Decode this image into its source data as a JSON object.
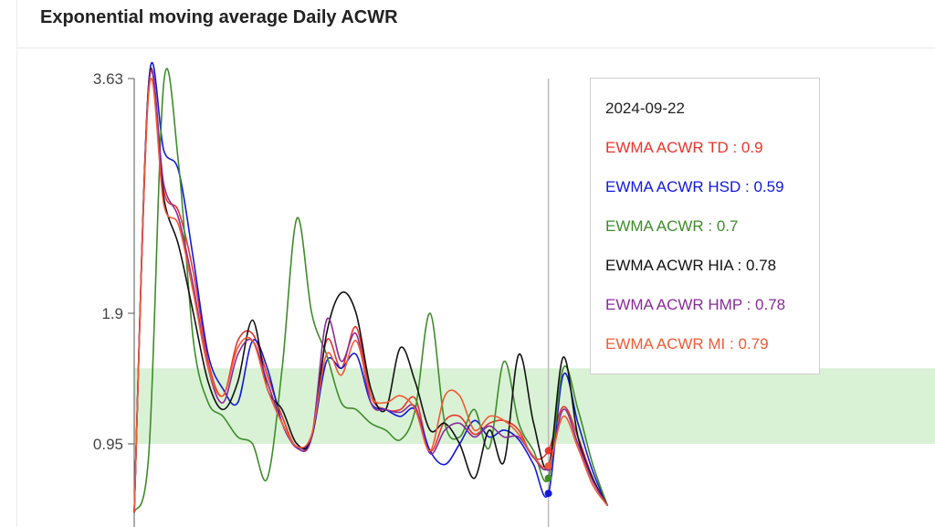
{
  "title": "Exponential moving average Daily ACWR",
  "chart_data": {
    "type": "line",
    "title": "Exponential moving average Daily ACWR",
    "ylim": [
      0.45,
      3.63
    ],
    "y_ticks": [
      3.63,
      1.9,
      0.95
    ],
    "y_tick_labels": [
      "3.63",
      "1.9",
      "0.95"
    ],
    "x_range": [
      "2024-08-25",
      "2024-10-03"
    ],
    "band": {
      "from": 0.95,
      "to": 1.5,
      "color": "#d9f2d5"
    },
    "hover_date": "2024-09-22",
    "series": [
      {
        "name": "EWMA ACWR TD",
        "color": "#e8352c",
        "points": [
          [
            "2024-08-25",
            0.45
          ],
          [
            "2024-08-26",
            3.6
          ],
          [
            "2024-08-27",
            2.8
          ],
          [
            "2024-08-28",
            2.65
          ],
          [
            "2024-08-29",
            2.2
          ],
          [
            "2024-08-30",
            1.55
          ],
          [
            "2024-08-31",
            1.3
          ],
          [
            "2024-09-01",
            1.7
          ],
          [
            "2024-09-02",
            1.75
          ],
          [
            "2024-09-03",
            1.45
          ],
          [
            "2024-09-04",
            1.15
          ],
          [
            "2024-09-05",
            0.92
          ],
          [
            "2024-09-06",
            1.0
          ],
          [
            "2024-09-07",
            1.7
          ],
          [
            "2024-09-08",
            1.5
          ],
          [
            "2024-09-09",
            1.8
          ],
          [
            "2024-09-10",
            1.3
          ],
          [
            "2024-09-11",
            1.2
          ],
          [
            "2024-09-12",
            1.2
          ],
          [
            "2024-09-13",
            1.28
          ],
          [
            "2024-09-14",
            0.9
          ],
          [
            "2024-09-15",
            1.12
          ],
          [
            "2024-09-16",
            1.15
          ],
          [
            "2024-09-17",
            1.02
          ],
          [
            "2024-09-18",
            1.1
          ],
          [
            "2024-09-19",
            1.12
          ],
          [
            "2024-09-20",
            1.05
          ],
          [
            "2024-09-21",
            0.85
          ],
          [
            "2024-09-22",
            0.9
          ],
          [
            "2024-09-23",
            1.22
          ],
          [
            "2024-09-24",
            1.0
          ],
          [
            "2024-09-25",
            0.7
          ],
          [
            "2024-09-26",
            0.5
          ]
        ]
      },
      {
        "name": "EWMA ACWR HSD",
        "color": "#1219d8",
        "points": [
          [
            "2024-08-25",
            0.45
          ],
          [
            "2024-08-26",
            3.62
          ],
          [
            "2024-08-27",
            3.1
          ],
          [
            "2024-08-28",
            2.95
          ],
          [
            "2024-08-29",
            2.3
          ],
          [
            "2024-08-30",
            1.6
          ],
          [
            "2024-08-31",
            1.35
          ],
          [
            "2024-09-01",
            1.25
          ],
          [
            "2024-09-02",
            1.7
          ],
          [
            "2024-09-03",
            1.5
          ],
          [
            "2024-09-04",
            1.1
          ],
          [
            "2024-09-05",
            0.93
          ],
          [
            "2024-09-06",
            1.0
          ],
          [
            "2024-09-07",
            1.55
          ],
          [
            "2024-09-08",
            1.5
          ],
          [
            "2024-09-09",
            1.6
          ],
          [
            "2024-09-10",
            1.25
          ],
          [
            "2024-09-11",
            1.2
          ],
          [
            "2024-09-12",
            1.15
          ],
          [
            "2024-09-13",
            1.2
          ],
          [
            "2024-09-14",
            0.9
          ],
          [
            "2024-09-15",
            0.8
          ],
          [
            "2024-09-16",
            0.95
          ],
          [
            "2024-09-17",
            1.12
          ],
          [
            "2024-09-18",
            1.0
          ],
          [
            "2024-09-19",
            1.05
          ],
          [
            "2024-09-20",
            0.98
          ],
          [
            "2024-09-21",
            0.8
          ],
          [
            "2024-09-22",
            0.59
          ],
          [
            "2024-09-23",
            1.45
          ],
          [
            "2024-09-24",
            1.1
          ],
          [
            "2024-09-25",
            0.75
          ],
          [
            "2024-09-26",
            0.5
          ]
        ]
      },
      {
        "name": "EWMA ACWR",
        "color": "#3e8c2a",
        "points": [
          [
            "2024-08-25",
            0.45
          ],
          [
            "2024-08-26",
            0.9
          ],
          [
            "2024-08-27",
            3.6
          ],
          [
            "2024-08-28",
            3.0
          ],
          [
            "2024-08-29",
            1.7
          ],
          [
            "2024-08-30",
            1.25
          ],
          [
            "2024-08-31",
            1.15
          ],
          [
            "2024-09-01",
            1.0
          ],
          [
            "2024-09-02",
            0.95
          ],
          [
            "2024-09-03",
            0.7
          ],
          [
            "2024-09-04",
            1.5
          ],
          [
            "2024-09-05",
            2.6
          ],
          [
            "2024-09-06",
            1.9
          ],
          [
            "2024-09-07",
            1.6
          ],
          [
            "2024-09-08",
            1.25
          ],
          [
            "2024-09-09",
            1.2
          ],
          [
            "2024-09-10",
            1.1
          ],
          [
            "2024-09-11",
            1.05
          ],
          [
            "2024-09-12",
            0.98
          ],
          [
            "2024-09-13",
            1.2
          ],
          [
            "2024-09-14",
            1.9
          ],
          [
            "2024-09-15",
            1.1
          ],
          [
            "2024-09-16",
            1.0
          ],
          [
            "2024-09-17",
            1.2
          ],
          [
            "2024-09-18",
            0.92
          ],
          [
            "2024-09-19",
            1.55
          ],
          [
            "2024-09-20",
            1.1
          ],
          [
            "2024-09-21",
            0.9
          ],
          [
            "2024-09-22",
            0.7
          ],
          [
            "2024-09-23",
            1.5
          ],
          [
            "2024-09-24",
            1.2
          ],
          [
            "2024-09-25",
            0.8
          ],
          [
            "2024-09-26",
            0.5
          ]
        ]
      },
      {
        "name": "EWMA ACWR HIA",
        "color": "#111111",
        "points": [
          [
            "2024-08-25",
            0.45
          ],
          [
            "2024-08-26",
            3.62
          ],
          [
            "2024-08-27",
            2.75
          ],
          [
            "2024-08-28",
            2.4
          ],
          [
            "2024-08-29",
            1.9
          ],
          [
            "2024-08-30",
            1.4
          ],
          [
            "2024-08-31",
            1.2
          ],
          [
            "2024-09-01",
            1.4
          ],
          [
            "2024-09-02",
            1.85
          ],
          [
            "2024-09-03",
            1.35
          ],
          [
            "2024-09-04",
            1.2
          ],
          [
            "2024-09-05",
            0.95
          ],
          [
            "2024-09-06",
            1.0
          ],
          [
            "2024-09-07",
            1.75
          ],
          [
            "2024-09-08",
            2.05
          ],
          [
            "2024-09-09",
            1.9
          ],
          [
            "2024-09-10",
            1.35
          ],
          [
            "2024-09-11",
            1.2
          ],
          [
            "2024-09-12",
            1.65
          ],
          [
            "2024-09-13",
            1.4
          ],
          [
            "2024-09-14",
            1.05
          ],
          [
            "2024-09-15",
            1.1
          ],
          [
            "2024-09-16",
            0.95
          ],
          [
            "2024-09-17",
            0.7
          ],
          [
            "2024-09-18",
            1.05
          ],
          [
            "2024-09-19",
            0.82
          ],
          [
            "2024-09-20",
            1.6
          ],
          [
            "2024-09-21",
            1.1
          ],
          [
            "2024-09-22",
            0.78
          ],
          [
            "2024-09-23",
            1.58
          ],
          [
            "2024-09-24",
            1.0
          ],
          [
            "2024-09-25",
            0.7
          ],
          [
            "2024-09-26",
            0.5
          ]
        ]
      },
      {
        "name": "EWMA ACWR HMP",
        "color": "#8a2b9a",
        "points": [
          [
            "2024-08-25",
            0.45
          ],
          [
            "2024-08-26",
            3.6
          ],
          [
            "2024-08-27",
            2.85
          ],
          [
            "2024-08-28",
            2.6
          ],
          [
            "2024-08-29",
            2.1
          ],
          [
            "2024-08-30",
            1.5
          ],
          [
            "2024-08-31",
            1.25
          ],
          [
            "2024-09-01",
            1.6
          ],
          [
            "2024-09-02",
            1.7
          ],
          [
            "2024-09-03",
            1.4
          ],
          [
            "2024-09-04",
            1.1
          ],
          [
            "2024-09-05",
            0.92
          ],
          [
            "2024-09-06",
            1.0
          ],
          [
            "2024-09-07",
            1.85
          ],
          [
            "2024-09-08",
            1.55
          ],
          [
            "2024-09-09",
            1.75
          ],
          [
            "2024-09-10",
            1.25
          ],
          [
            "2024-09-11",
            1.2
          ],
          [
            "2024-09-12",
            1.18
          ],
          [
            "2024-09-13",
            1.22
          ],
          [
            "2024-09-14",
            0.88
          ],
          [
            "2024-09-15",
            1.05
          ],
          [
            "2024-09-16",
            1.1
          ],
          [
            "2024-09-17",
            1.0
          ],
          [
            "2024-09-18",
            1.08
          ],
          [
            "2024-09-19",
            1.0
          ],
          [
            "2024-09-20",
            1.0
          ],
          [
            "2024-09-21",
            0.85
          ],
          [
            "2024-09-22",
            0.78
          ],
          [
            "2024-09-23",
            1.2
          ],
          [
            "2024-09-24",
            0.95
          ],
          [
            "2024-09-25",
            0.68
          ],
          [
            "2024-09-26",
            0.5
          ]
        ]
      },
      {
        "name": "EWMA ACWR MI",
        "color": "#f25a35",
        "points": [
          [
            "2024-08-25",
            0.45
          ],
          [
            "2024-08-26",
            3.55
          ],
          [
            "2024-08-27",
            2.7
          ],
          [
            "2024-08-28",
            2.55
          ],
          [
            "2024-08-29",
            2.05
          ],
          [
            "2024-08-30",
            1.5
          ],
          [
            "2024-08-31",
            1.3
          ],
          [
            "2024-09-01",
            1.65
          ],
          [
            "2024-09-02",
            1.7
          ],
          [
            "2024-09-03",
            1.35
          ],
          [
            "2024-09-04",
            1.1
          ],
          [
            "2024-09-05",
            0.93
          ],
          [
            "2024-09-06",
            1.02
          ],
          [
            "2024-09-07",
            1.6
          ],
          [
            "2024-09-08",
            1.45
          ],
          [
            "2024-09-09",
            1.7
          ],
          [
            "2024-09-10",
            1.3
          ],
          [
            "2024-09-11",
            1.25
          ],
          [
            "2024-09-12",
            1.3
          ],
          [
            "2024-09-13",
            1.2
          ],
          [
            "2024-09-14",
            0.9
          ],
          [
            "2024-09-15",
            1.3
          ],
          [
            "2024-09-16",
            1.3
          ],
          [
            "2024-09-17",
            1.05
          ],
          [
            "2024-09-18",
            1.15
          ],
          [
            "2024-09-19",
            1.12
          ],
          [
            "2024-09-20",
            1.02
          ],
          [
            "2024-09-21",
            0.86
          ],
          [
            "2024-09-22",
            0.79
          ],
          [
            "2024-09-23",
            1.15
          ],
          [
            "2024-09-24",
            0.92
          ],
          [
            "2024-09-25",
            0.65
          ],
          [
            "2024-09-26",
            0.5
          ]
        ]
      }
    ]
  },
  "tooltip": {
    "date": "2024-09-22",
    "rows": [
      {
        "label": "EWMA ACWR TD : 0.9",
        "color": "#e8352c"
      },
      {
        "label": "EWMA ACWR HSD : 0.59",
        "color": "#1219d8"
      },
      {
        "label": "EWMA ACWR : 0.7",
        "color": "#3e8c2a"
      },
      {
        "label": "EWMA ACWR HIA : 0.78",
        "color": "#111111"
      },
      {
        "label": "EWMA ACWR HMP : 0.78",
        "color": "#8a2b9a"
      },
      {
        "label": "EWMA ACWR MI : 0.79",
        "color": "#f25a35"
      }
    ]
  }
}
